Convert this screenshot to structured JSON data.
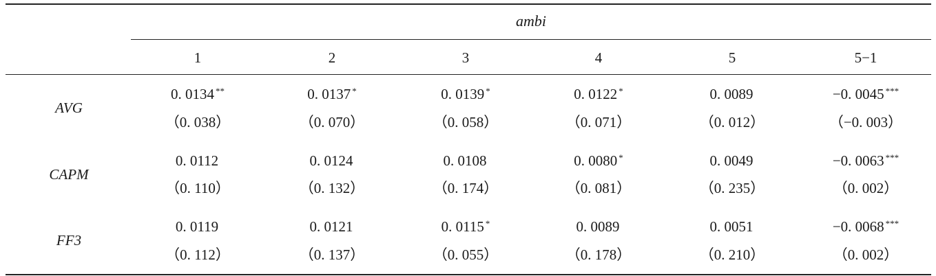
{
  "table": {
    "group_header": "ambi",
    "columns": [
      "1",
      "2",
      "3",
      "4",
      "5",
      "5−1"
    ],
    "rows": [
      {
        "label": "AVG",
        "cells": [
          {
            "value": "0. 0134",
            "stars": "**",
            "se": "（0. 038）"
          },
          {
            "value": "0. 0137",
            "stars": "*",
            "se": "（0. 070）"
          },
          {
            "value": "0. 0139",
            "stars": "*",
            "se": "（0. 058）"
          },
          {
            "value": "0. 0122",
            "stars": "*",
            "se": "（0. 071）"
          },
          {
            "value": "0. 0089",
            "stars": "",
            "se": "（0. 012）"
          },
          {
            "value": "−0. 0045",
            "stars": "***",
            "se": "（−0. 003）"
          }
        ]
      },
      {
        "label": "CAPM",
        "cells": [
          {
            "value": "0. 0112",
            "stars": "",
            "se": "（0. 110）"
          },
          {
            "value": "0. 0124",
            "stars": "",
            "se": "（0. 132）"
          },
          {
            "value": "0. 0108",
            "stars": "",
            "se": "（0. 174）"
          },
          {
            "value": "0. 0080",
            "stars": "*",
            "se": "（0. 081）"
          },
          {
            "value": "0. 0049",
            "stars": "",
            "se": "（0. 235）"
          },
          {
            "value": "−0. 0063",
            "stars": "***",
            "se": "（0. 002）"
          }
        ]
      },
      {
        "label": "FF3",
        "cells": [
          {
            "value": "0. 0119",
            "stars": "",
            "se": "（0. 112）"
          },
          {
            "value": "0. 0121",
            "stars": "",
            "se": "（0. 137）"
          },
          {
            "value": "0. 0115",
            "stars": "*",
            "se": "（0. 055）"
          },
          {
            "value": "0. 0089",
            "stars": "",
            "se": "（0. 178）"
          },
          {
            "value": "0. 0051",
            "stars": "",
            "se": "（0. 210）"
          },
          {
            "value": "−0. 0068",
            "stars": "***",
            "se": "（0. 002）"
          }
        ]
      }
    ]
  }
}
